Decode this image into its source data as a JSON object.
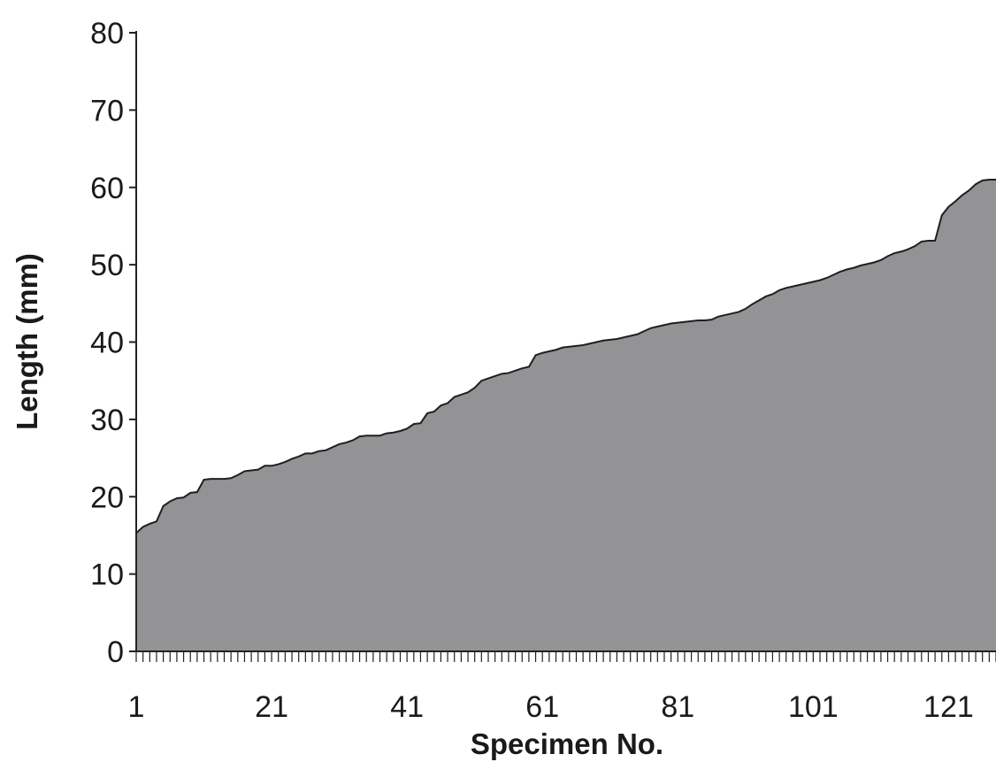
{
  "chart_data": {
    "type": "area",
    "title": "",
    "xlabel": "Specimen No.",
    "ylabel": "Length (mm)",
    "xlim": [
      1,
      128
    ],
    "ylim": [
      0,
      80
    ],
    "yticks": [
      0,
      10,
      20,
      30,
      40,
      50,
      60,
      70,
      80
    ],
    "xtick_labels": [
      1,
      21,
      41,
      61,
      81,
      101,
      121
    ],
    "grid": false,
    "legend": "none",
    "fill_color": "#939396",
    "line_color": "#1f1f1f",
    "series": [
      {
        "x": [
          1,
          2,
          3,
          4,
          5,
          6,
          7,
          8,
          9,
          10,
          11,
          12,
          13,
          14,
          15,
          16,
          17,
          18,
          19,
          20,
          21,
          22,
          23,
          24,
          25,
          26,
          27,
          28,
          29,
          30,
          31,
          32,
          33,
          34,
          35,
          36,
          37,
          38,
          39,
          40,
          41,
          42,
          43,
          44,
          45,
          46,
          47,
          48,
          49,
          50,
          51,
          52,
          53,
          54,
          55,
          56,
          57,
          58,
          59,
          60,
          61,
          62,
          63,
          64,
          65,
          66,
          67,
          68,
          69,
          70,
          71,
          72,
          73,
          74,
          75,
          76,
          77,
          78,
          79,
          80,
          81,
          82,
          83,
          84,
          85,
          86,
          87,
          88,
          89,
          90,
          91,
          92,
          93,
          94,
          95,
          96,
          97,
          98,
          99,
          100,
          101,
          102,
          103,
          104,
          105,
          106,
          107,
          108,
          109,
          110,
          111,
          112,
          113,
          114,
          115,
          116,
          117,
          118,
          119,
          120,
          121,
          122,
          123,
          124,
          125,
          126,
          127,
          128
        ],
        "y": [
          15.3,
          16.1,
          16.5,
          16.8,
          18.8,
          19.4,
          19.8,
          19.9,
          20.5,
          20.6,
          22.2,
          22.3,
          22.3,
          22.3,
          22.4,
          22.8,
          23.3,
          23.4,
          23.5,
          24.0,
          24.0,
          24.2,
          24.5,
          24.9,
          25.2,
          25.6,
          25.6,
          25.9,
          26.0,
          26.4,
          26.8,
          27.0,
          27.3,
          27.8,
          27.9,
          27.9,
          27.9,
          28.2,
          28.3,
          28.5,
          28.8,
          29.4,
          29.5,
          30.8,
          31.0,
          31.8,
          32.1,
          32.9,
          33.2,
          33.5,
          34.1,
          35.0,
          35.3,
          35.6,
          35.9,
          36.0,
          36.3,
          36.6,
          36.8,
          38.3,
          38.6,
          38.8,
          39.0,
          39.3,
          39.4,
          39.5,
          39.6,
          39.8,
          40.0,
          40.2,
          40.3,
          40.4,
          40.6,
          40.8,
          41.0,
          41.4,
          41.8,
          42.0,
          42.2,
          42.4,
          42.5,
          42.6,
          42.7,
          42.8,
          42.8,
          42.9,
          43.3,
          43.5,
          43.7,
          43.9,
          44.3,
          44.9,
          45.4,
          45.9,
          46.2,
          46.7,
          47.0,
          47.2,
          47.4,
          47.6,
          47.8,
          48.0,
          48.3,
          48.7,
          49.1,
          49.4,
          49.6,
          49.9,
          50.1,
          50.3,
          50.6,
          51.1,
          51.5,
          51.7,
          52.0,
          52.4,
          53.0,
          53.1,
          53.1,
          56.4,
          57.5,
          58.2,
          59.0,
          59.6,
          60.4,
          60.9,
          61.0,
          61.0
        ]
      }
    ]
  }
}
